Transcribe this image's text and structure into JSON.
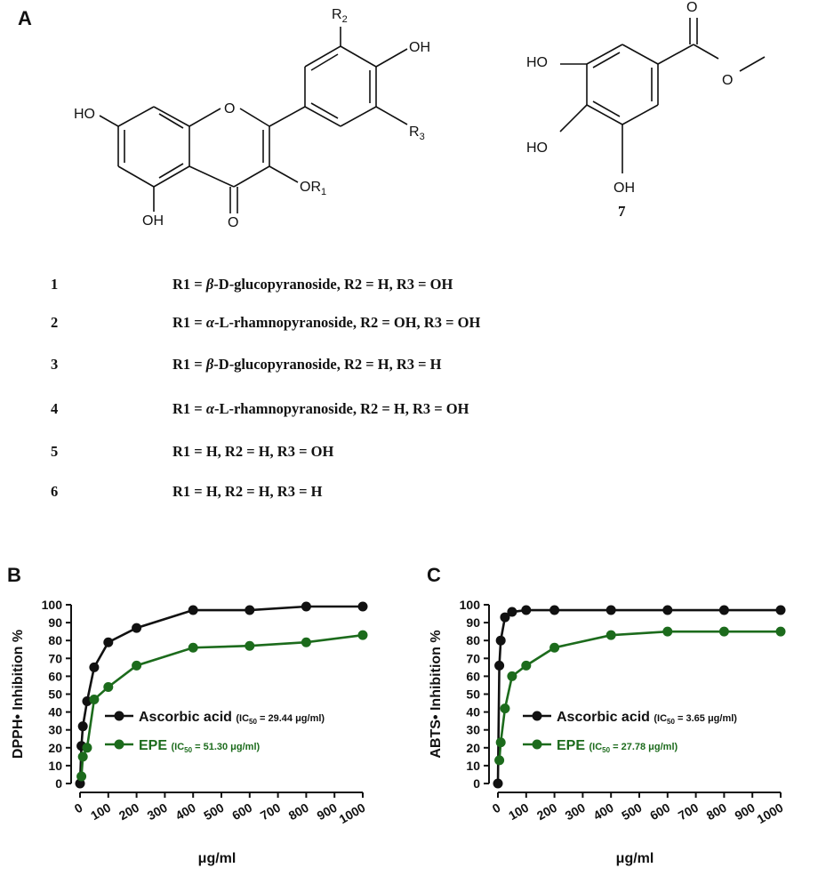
{
  "panels": {
    "a": "A",
    "b": "B",
    "c": "C"
  },
  "structure_a": {
    "labels": {
      "ho_left": "HO",
      "o_ring": "O",
      "oh_bottom": "OH",
      "o_carbonyl": "O",
      "or1": "OR",
      "or1_sub": "1",
      "oh_top": "OH",
      "r2": "R",
      "r2_sub": "2",
      "r3": "R",
      "r3_sub": "3"
    }
  },
  "structure_7": {
    "labels": {
      "ho_1": "HO",
      "ho_2": "HO",
      "oh": "OH",
      "o_carbonyl": "O",
      "o_ester": "O"
    },
    "number": "7"
  },
  "compounds": [
    {
      "num": "1",
      "prefix": "R1 = ",
      "greek": "β",
      "rest": "-D-glucopyranoside, R2 = H, R3 = OH"
    },
    {
      "num": "2",
      "prefix": "R1 = ",
      "greek": "α",
      "rest": "-L-rhamnopyranoside, R2 = OH, R3 = OH"
    },
    {
      "num": "3",
      "prefix": "R1 = ",
      "greek": "β",
      "rest": "-D-glucopyranoside, R2 = H, R3 = H"
    },
    {
      "num": "4",
      "prefix": "R1 = ",
      "greek": "α",
      "rest": "-L-rhamnopyranoside, R2 = H, R3 = OH"
    },
    {
      "num": "5",
      "prefix": "R1 = H, R2 = H, R3 = OH",
      "greek": "",
      "rest": ""
    },
    {
      "num": "6",
      "prefix": "R1 = H, R2 = H, R3 = H",
      "greek": "",
      "rest": ""
    }
  ],
  "chart_data": [
    {
      "type": "line",
      "panel": "B",
      "xlabel": "μg/ml",
      "ylabel": "DPPH• Inhibition %",
      "xlim": [
        0,
        1000
      ],
      "ylim": [
        0,
        100
      ],
      "xticks": [
        "0",
        "100",
        "200",
        "300",
        "400",
        "500",
        "600",
        "700",
        "800",
        "900",
        "1000"
      ],
      "yticks": [
        "0",
        "10",
        "20",
        "30",
        "40",
        "50",
        "60",
        "70",
        "80",
        "90",
        "100"
      ],
      "legend_position": "center-right",
      "series": [
        {
          "name": "Ascorbic acid",
          "ic50": "(IC50 = 29.44 μg/ml)",
          "ic_pre": "(IC",
          "ic_sub": "50",
          "ic_post": " = 29.44 μg/ml)",
          "color": "#111111",
          "x": [
            0,
            5,
            10,
            25,
            50,
            100,
            200,
            400,
            600,
            800,
            1000
          ],
          "y": [
            0,
            21,
            32,
            46,
            65,
            79,
            87,
            97,
            97,
            99,
            99
          ]
        },
        {
          "name": "EPE",
          "ic50": "(IC50 = 51.30 μg/ml)",
          "ic_pre": "(IC",
          "ic_sub": "50",
          "ic_post": " = 51.30 μg/ml)",
          "color": "#1c6b1c",
          "x": [
            5,
            10,
            25,
            50,
            100,
            200,
            400,
            600,
            800,
            1000
          ],
          "y": [
            4,
            15,
            20,
            47,
            54,
            66,
            76,
            77,
            79,
            83
          ]
        }
      ]
    },
    {
      "type": "line",
      "panel": "C",
      "xlabel": "μg/ml",
      "ylabel": "ABTS• Inhibition %",
      "xlim": [
        0,
        1000
      ],
      "ylim": [
        0,
        100
      ],
      "xticks": [
        "0",
        "100",
        "200",
        "300",
        "400",
        "500",
        "600",
        "700",
        "800",
        "900",
        "1000"
      ],
      "yticks": [
        "0",
        "10",
        "20",
        "30",
        "40",
        "50",
        "60",
        "70",
        "80",
        "90",
        "100"
      ],
      "legend_position": "center-right",
      "series": [
        {
          "name": "Ascorbic acid",
          "ic50": "(IC50 = 3.65 μg/ml)",
          "ic_pre": "(IC",
          "ic_sub": "50",
          "ic_post": " = 3.65 μg/ml)",
          "color": "#111111",
          "x": [
            0,
            5,
            10,
            25,
            50,
            100,
            200,
            400,
            600,
            800,
            1000
          ],
          "y": [
            0,
            66,
            80,
            93,
            96,
            97,
            97,
            97,
            97,
            97,
            97
          ]
        },
        {
          "name": "EPE",
          "ic50": "(IC50 = 27.78 μg/ml)",
          "ic_pre": "(IC",
          "ic_sub": "50",
          "ic_post": " = 27.78 μg/ml)",
          "color": "#1c6b1c",
          "x": [
            5,
            10,
            25,
            50,
            100,
            200,
            400,
            600,
            800,
            1000
          ],
          "y": [
            13,
            23,
            42,
            60,
            66,
            76,
            83,
            85,
            85,
            85
          ]
        }
      ]
    }
  ]
}
